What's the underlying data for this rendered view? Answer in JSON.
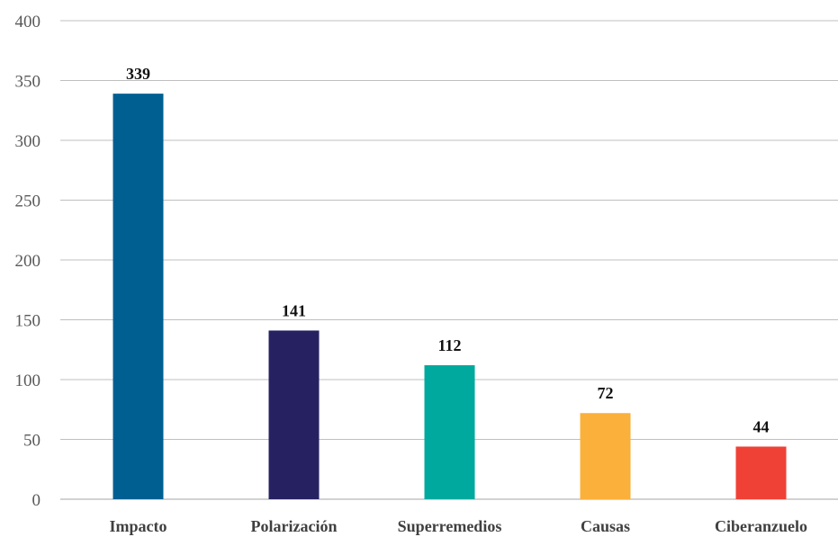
{
  "chart_data": {
    "type": "bar",
    "title": "",
    "xlabel": "",
    "ylabel": "",
    "categories": [
      "Impacto",
      "Polarización",
      "Superremedios",
      "Causas",
      "Ciberanzuelo"
    ],
    "values": [
      339,
      141,
      112,
      72,
      44
    ],
    "data_labels": [
      "339",
      "141",
      "112",
      "72",
      "44"
    ],
    "colors": [
      "#005f91",
      "#262262",
      "#00a99d",
      "#fbb03b",
      "#ef4136"
    ],
    "ylim": [
      0,
      400
    ],
    "yticks": [
      0,
      50,
      100,
      150,
      200,
      250,
      300,
      350,
      400
    ],
    "ytick_labels": [
      "0",
      "50",
      "100",
      "150",
      "200",
      "250",
      "300",
      "350",
      "400"
    ],
    "grid": true,
    "legend": "none"
  }
}
